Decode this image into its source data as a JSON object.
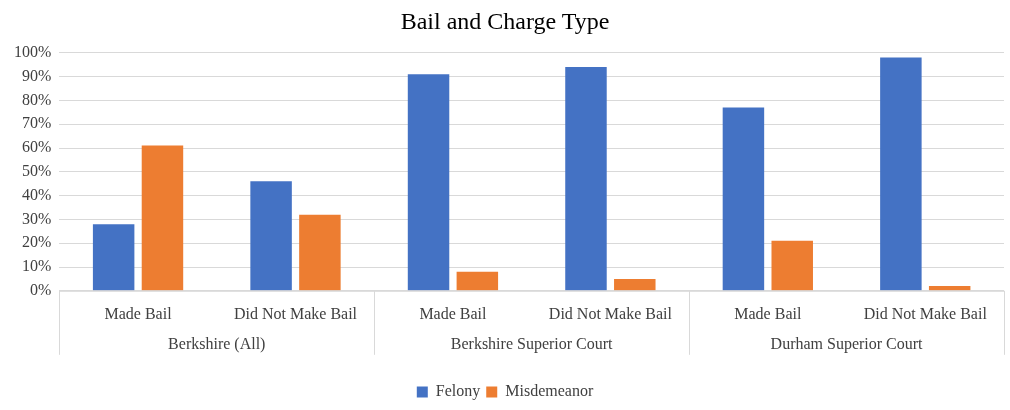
{
  "chart_data": {
    "type": "bar",
    "title": "Bail and Charge Type",
    "categories": [
      "Made Bail",
      "Did Not Make Bail",
      "Made Bail",
      "Did Not Make Bail",
      "Made Bail",
      "Did Not Make Bail"
    ],
    "annotations": [
      "Berkshire (All)",
      "Berkshire Superior Court",
      "Durham Superior Court"
    ],
    "series": [
      {
        "name": "Felony",
        "color": "#4472c4",
        "values": [
          28,
          46,
          91,
          94,
          77,
          98
        ]
      },
      {
        "name": "Misdemeanor",
        "color": "#ed7d31",
        "values": [
          61,
          32,
          8,
          5,
          21,
          2
        ]
      }
    ],
    "ylim": [
      0,
      100
    ],
    "yticks": [
      {
        "value": 0,
        "label": "0%"
      },
      {
        "value": 10,
        "label": "10%"
      },
      {
        "value": 20,
        "label": "20%"
      },
      {
        "value": 30,
        "label": "30%"
      },
      {
        "value": 40,
        "label": "40%"
      },
      {
        "value": 50,
        "label": "50%"
      },
      {
        "value": 60,
        "label": "60%"
      },
      {
        "value": 70,
        "label": "70%"
      },
      {
        "value": 80,
        "label": "80%"
      },
      {
        "value": 90,
        "label": "90%"
      },
      {
        "value": 100,
        "label": "100%"
      }
    ],
    "grid": "y",
    "legend": "bottom"
  }
}
